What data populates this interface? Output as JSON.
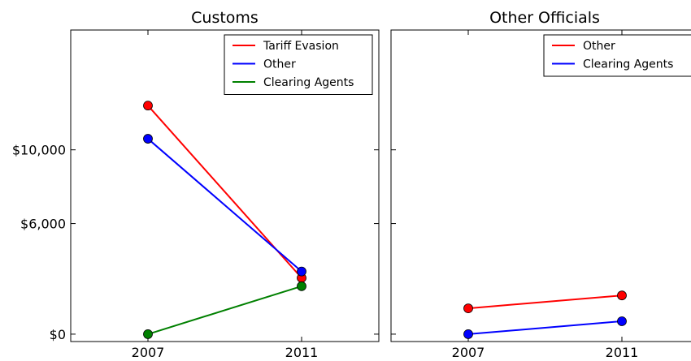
{
  "chart_data": [
    {
      "type": "line",
      "title": "Customs",
      "x": [
        "2007",
        "2011"
      ],
      "ylim": [
        -400,
        16500
      ],
      "yticks": [
        0,
        6000,
        10000
      ],
      "ytick_labels": [
        "$0",
        "$6,000",
        "$10,000"
      ],
      "grid": false,
      "legend": "top-right",
      "series": [
        {
          "name": "Tariff Evasion",
          "color": "#ff0000",
          "values": [
            12400,
            3050
          ]
        },
        {
          "name": "Other",
          "color": "#0000ff",
          "values": [
            10600,
            3400
          ]
        },
        {
          "name": "Clearing Agents",
          "color": "#008000",
          "values": [
            0,
            2600
          ]
        }
      ]
    },
    {
      "type": "line",
      "title": "Other Officials",
      "x": [
        "2007",
        "2011"
      ],
      "ylim": [
        -400,
        16500
      ],
      "grid": false,
      "legend": "top-right",
      "series": [
        {
          "name": "Other",
          "color": "#ff0000",
          "values": [
            1400,
            2100
          ]
        },
        {
          "name": "Clearing Agents",
          "color": "#0000ff",
          "values": [
            0,
            700
          ]
        }
      ]
    }
  ]
}
